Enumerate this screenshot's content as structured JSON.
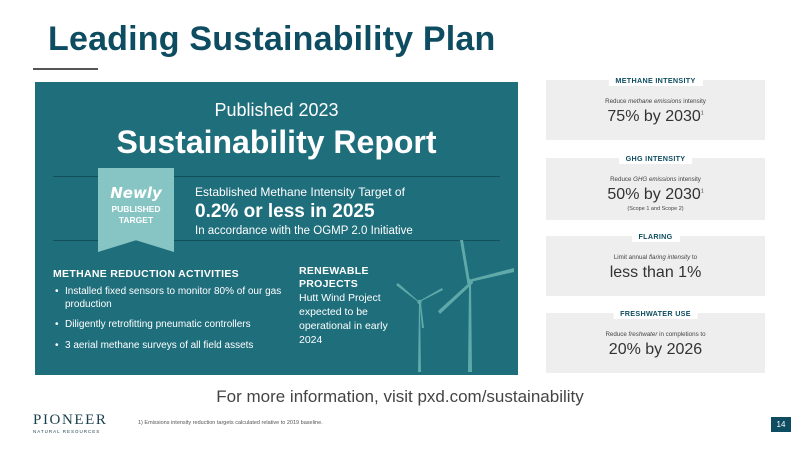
{
  "title": "Leading Sustainability Plan",
  "banner": {
    "published": "Published 2023",
    "report": "Sustainability Report",
    "ribbon": {
      "line1": "Newly",
      "line2": "PUBLISHED",
      "line3": "TARGET"
    },
    "target": {
      "line1": "Established Methane Intensity Target of",
      "line2": "0.2% or less in 2025",
      "line3": "In accordance with the OGMP 2.0 Initiative"
    },
    "activities": {
      "heading": "METHANE REDUCTION ACTIVITIES",
      "items": [
        "Installed fixed sensors to monitor 80% of our gas production",
        "Diligently retrofitting pneumatic controllers",
        "3 aerial methane surveys of all field assets"
      ]
    },
    "renewable": {
      "heading": "RENEWABLE PROJECTS",
      "text": "Hutt Wind Project expected to be operational in early 2024"
    }
  },
  "cards": [
    {
      "badge": "METHANE INTENSITY",
      "desc_pre": "Reduce ",
      "desc_em": "methane emissions",
      "desc_post": " intensity",
      "big": "75% by 2030",
      "sup": "1",
      "sub": ""
    },
    {
      "badge": "GHG INTENSITY",
      "desc_pre": "Reduce ",
      "desc_em": "GHG emissions",
      "desc_post": " intensity",
      "big": "50% by 2030",
      "sup": "1",
      "sub": "(Scope 1 and Scope 2)"
    },
    {
      "badge": "FLARING",
      "desc_pre": "Limit annual ",
      "desc_em": "flaring intensity",
      "desc_post": " to",
      "big": "less than 1%",
      "sup": "",
      "sub": ""
    },
    {
      "badge": "FRESHWATER USE",
      "desc_pre": "Reduce ",
      "desc_em": "freshwater",
      "desc_post": " in completions to",
      "big": "20% by 2026",
      "sup": "",
      "sub": ""
    }
  ],
  "more_info": "For more information, visit pxd.com/sustainability",
  "logo": {
    "name": "PIONEER",
    "tagline": "NATURAL RESOURCES"
  },
  "footnote": "1)  Emissions intensity reduction targets calculated relative to 2019 baseline.",
  "page_number": "14",
  "colors": {
    "teal": "#1f6e7c",
    "ribbon": "#86c5c4",
    "title": "#0e4d61",
    "card_bg": "#eeeeee"
  }
}
